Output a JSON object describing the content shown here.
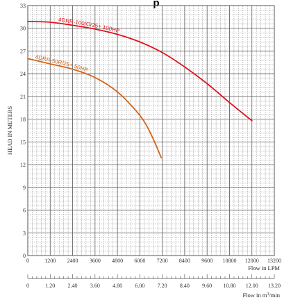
{
  "chart_data": {
    "type": "line",
    "title": "p",
    "ylabel": "HEAD IN METERS",
    "xlabel": "Flow in LPM",
    "x2label": "Flow in m³/min",
    "x2label_base": "Flow in m",
    "x2label_sup": "3",
    "x2label_tail": "/min",
    "xlim": [
      0,
      13200
    ],
    "ylim": [
      0,
      33
    ],
    "xticks": [
      0,
      1200,
      2400,
      3600,
      4800,
      6000,
      7200,
      8400,
      9600,
      10800,
      12000,
      13200
    ],
    "yticks": [
      0,
      3,
      6,
      9,
      12,
      15,
      18,
      21,
      24,
      27,
      30,
      33
    ],
    "x2lim": [
      0,
      13.2
    ],
    "x2ticks": [
      "0",
      "1.20",
      "2.40",
      "3.60",
      "4.80",
      "6.00",
      "7.20",
      "8.40",
      "9.60",
      "10.80",
      "12.00",
      "13.20"
    ],
    "grid": true,
    "series": [
      {
        "name": "4DRR-100/O/25+ 100HP",
        "color": "#e0141e",
        "x": [
          0,
          1200,
          2400,
          3600,
          4800,
          6000,
          7200,
          8400,
          9600,
          10800,
          12000
        ],
        "y": [
          30.9,
          30.8,
          30.4,
          29.9,
          29.2,
          28.2,
          26.8,
          24.9,
          22.7,
          20.2,
          17.8
        ]
      },
      {
        "name": "4DRR-50R/25+ 50HP",
        "color": "#d4661a",
        "x": [
          0,
          1200,
          2400,
          3600,
          4800,
          6000,
          6600,
          7150
        ],
        "y": [
          26.0,
          25.3,
          24.6,
          23.5,
          21.6,
          18.5,
          16.0,
          12.9
        ]
      }
    ]
  }
}
